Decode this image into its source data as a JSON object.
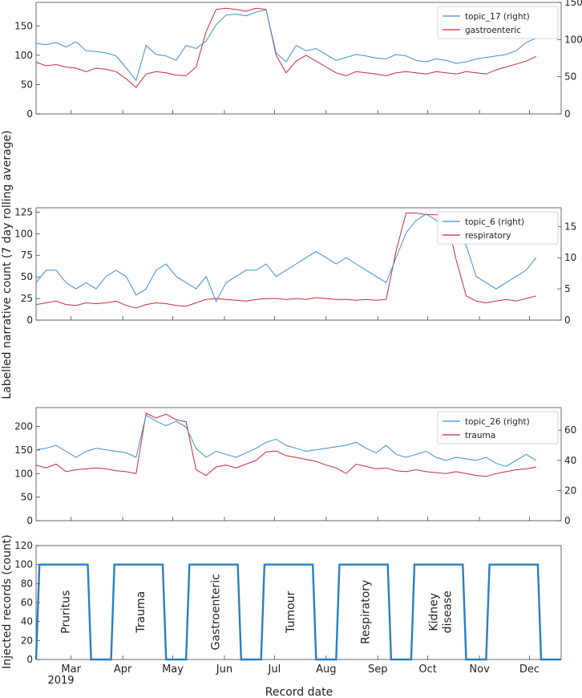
{
  "figure": {
    "shared_ylabel": "Labelled narrative count (7 day rolling average)",
    "xlabel": "Record date",
    "x_ticks": [
      "Mar",
      "Apr",
      "May",
      "Jun",
      "Jul",
      "Aug",
      "Sep",
      "Oct",
      "Nov",
      "Dec"
    ],
    "x_year": "2019",
    "colors": {
      "topic": "#3a8fd0",
      "category": "#c8283f",
      "injected": "#2a7fc2",
      "axis": "#333333"
    }
  },
  "chart_data": [
    {
      "type": "line",
      "panel": "top",
      "left_ylim": [
        0,
        190
      ],
      "left_ticks": [
        0,
        50,
        100,
        150
      ],
      "right_ylim": [
        0,
        150
      ],
      "right_ticks": [
        0,
        50,
        100,
        150
      ],
      "legend": [
        "topic_17 (right)",
        "gastroenteric"
      ],
      "topic_series": {
        "name": "topic_17 (right)",
        "x": [
          0,
          6,
          12,
          18,
          24,
          30,
          36,
          42,
          48,
          54,
          60,
          66,
          72,
          78,
          84,
          90,
          96,
          102,
          108,
          114,
          120,
          126,
          132,
          138,
          144,
          150,
          156,
          162,
          168,
          174,
          180,
          186,
          192,
          198,
          204,
          210,
          216,
          222,
          228,
          234,
          240,
          246,
          252,
          258,
          264,
          270,
          276,
          282,
          288,
          294,
          300
        ],
        "values": [
          95,
          93,
          96,
          90,
          97,
          85,
          84,
          82,
          78,
          62,
          45,
          92,
          80,
          78,
          72,
          92,
          88,
          98,
          120,
          133,
          134,
          132,
          137,
          140,
          82,
          70,
          92,
          85,
          88,
          80,
          72,
          76,
          80,
          78,
          75,
          74,
          80,
          78,
          72,
          70,
          74,
          72,
          68,
          70,
          74,
          76,
          78,
          80,
          85,
          96,
          102
        ]
      },
      "category_series": {
        "name": "gastroenteric",
        "x": [
          0,
          6,
          12,
          18,
          24,
          30,
          36,
          42,
          48,
          54,
          60,
          66,
          72,
          78,
          84,
          90,
          96,
          102,
          108,
          114,
          120,
          126,
          132,
          138,
          144,
          150,
          156,
          162,
          168,
          174,
          180,
          186,
          192,
          198,
          204,
          210,
          216,
          222,
          228,
          234,
          240,
          246,
          252,
          258,
          264,
          270,
          276,
          282,
          288,
          294,
          300
        ],
        "values": [
          88,
          82,
          84,
          80,
          78,
          72,
          78,
          76,
          72,
          60,
          45,
          68,
          72,
          70,
          66,
          65,
          80,
          140,
          178,
          180,
          178,
          175,
          180,
          178,
          100,
          70,
          90,
          100,
          90,
          80,
          70,
          65,
          72,
          70,
          68,
          65,
          70,
          72,
          70,
          68,
          72,
          70,
          68,
          72,
          70,
          68,
          75,
          80,
          85,
          90,
          98
        ]
      }
    },
    {
      "type": "line",
      "panel": "middle",
      "left_ylim": [
        0,
        130
      ],
      "left_ticks": [
        0,
        25,
        50,
        75,
        100,
        125
      ],
      "right_ylim": [
        0,
        18
      ],
      "right_ticks": [
        0,
        5,
        10,
        15
      ],
      "legend": [
        "topic_6 (right)",
        "respiratory"
      ],
      "topic_series": {
        "name": "topic_6 (right)",
        "x": [
          0,
          6,
          12,
          18,
          24,
          30,
          36,
          42,
          48,
          54,
          60,
          66,
          72,
          78,
          84,
          90,
          96,
          102,
          108,
          114,
          120,
          126,
          132,
          138,
          144,
          150,
          156,
          162,
          168,
          174,
          180,
          186,
          192,
          198,
          204,
          210,
          216,
          222,
          228,
          234,
          240,
          246,
          252,
          258,
          264,
          270,
          276,
          282,
          288,
          294,
          300
        ],
        "values": [
          6,
          8,
          8,
          6,
          5,
          6,
          5,
          7,
          8,
          7,
          4,
          5,
          8,
          9,
          7,
          6,
          5,
          7,
          3,
          6,
          7,
          8,
          8,
          9,
          7,
          8,
          9,
          10,
          11,
          10,
          9,
          10,
          9,
          8,
          7,
          6,
          10,
          14,
          16,
          17,
          16,
          15,
          14,
          12,
          7,
          6,
          5,
          6,
          7,
          8,
          10
        ]
      },
      "category_series": {
        "name": "respiratory",
        "x": [
          0,
          6,
          12,
          18,
          24,
          30,
          36,
          42,
          48,
          54,
          60,
          66,
          72,
          78,
          84,
          90,
          96,
          102,
          108,
          114,
          120,
          126,
          132,
          138,
          144,
          150,
          156,
          162,
          168,
          174,
          180,
          186,
          192,
          198,
          204,
          210,
          216,
          222,
          228,
          234,
          240,
          246,
          252,
          258,
          264,
          270,
          276,
          282,
          288,
          294,
          300
        ],
        "values": [
          18,
          20,
          22,
          18,
          17,
          20,
          19,
          20,
          22,
          17,
          14,
          18,
          20,
          19,
          17,
          16,
          20,
          24,
          25,
          24,
          23,
          22,
          24,
          25,
          25,
          24,
          25,
          24,
          26,
          25,
          24,
          24,
          23,
          24,
          23,
          24,
          80,
          124,
          124,
          122,
          122,
          120,
          70,
          28,
          22,
          20,
          22,
          24,
          22,
          25,
          28
        ]
      }
    },
    {
      "type": "line",
      "panel": "lower",
      "left_ylim": [
        0,
        240
      ],
      "left_ticks": [
        0,
        50,
        100,
        150,
        200
      ],
      "right_ylim": [
        0,
        75
      ],
      "right_ticks": [
        0,
        20,
        40,
        60
      ],
      "legend": [
        "topic_26 (right)",
        "trauma"
      ],
      "topic_series": {
        "name": "topic_26 (right)",
        "x": [
          0,
          6,
          12,
          18,
          24,
          30,
          36,
          42,
          48,
          54,
          60,
          66,
          72,
          78,
          84,
          90,
          96,
          102,
          108,
          114,
          120,
          126,
          132,
          138,
          144,
          150,
          156,
          162,
          168,
          174,
          180,
          186,
          192,
          198,
          204,
          210,
          216,
          222,
          228,
          234,
          240,
          246,
          252,
          258,
          264,
          270,
          276,
          282,
          288,
          294,
          300
        ],
        "values": [
          47,
          48,
          50,
          46,
          42,
          46,
          48,
          47,
          46,
          45,
          42,
          70,
          66,
          63,
          66,
          62,
          48,
          42,
          46,
          44,
          42,
          45,
          48,
          52,
          54,
          50,
          48,
          46,
          47,
          48,
          49,
          50,
          52,
          48,
          45,
          50,
          44,
          42,
          44,
          46,
          42,
          40,
          42,
          41,
          40,
          42,
          38,
          36,
          40,
          44,
          40
        ]
      },
      "category_series": {
        "name": "trauma",
        "x": [
          0,
          6,
          12,
          18,
          24,
          30,
          36,
          42,
          48,
          54,
          60,
          66,
          72,
          78,
          84,
          90,
          96,
          102,
          108,
          114,
          120,
          126,
          132,
          138,
          144,
          150,
          156,
          162,
          168,
          174,
          180,
          186,
          192,
          198,
          204,
          210,
          216,
          222,
          228,
          234,
          240,
          246,
          252,
          258,
          264,
          270,
          276,
          282,
          288,
          294,
          300
        ],
        "values": [
          118,
          112,
          120,
          104,
          108,
          110,
          112,
          110,
          106,
          104,
          100,
          228,
          218,
          226,
          214,
          210,
          108,
          96,
          114,
          118,
          112,
          120,
          128,
          146,
          148,
          138,
          134,
          130,
          126,
          118,
          112,
          100,
          120,
          115,
          110,
          112,
          106,
          104,
          108,
          104,
          102,
          100,
          104,
          100,
          96,
          94,
          100,
          104,
          108,
          110,
          114
        ]
      }
    },
    {
      "type": "line",
      "panel": "bottom",
      "ylabel": "Injected records (count)",
      "left_ylim": [
        0,
        120
      ],
      "left_ticks": [
        0,
        20,
        40,
        60,
        80,
        100,
        120
      ],
      "x": [
        0,
        2,
        31,
        33,
        45,
        47,
        76,
        78,
        90,
        92,
        121,
        123,
        135,
        137,
        166,
        168,
        180,
        182,
        211,
        213,
        225,
        227,
        256,
        258,
        270,
        272,
        301,
        303,
        315
      ],
      "values": [
        0,
        100,
        100,
        0,
        0,
        100,
        100,
        0,
        0,
        100,
        100,
        0,
        0,
        100,
        100,
        0,
        0,
        100,
        100,
        0,
        0,
        100,
        100,
        0,
        0,
        100,
        100,
        0,
        0
      ],
      "annotations": [
        "Pruritus",
        "Trauma",
        "Gastroenteric",
        "Tumour",
        "Respiratory",
        "Kidney\ndisease"
      ]
    }
  ]
}
